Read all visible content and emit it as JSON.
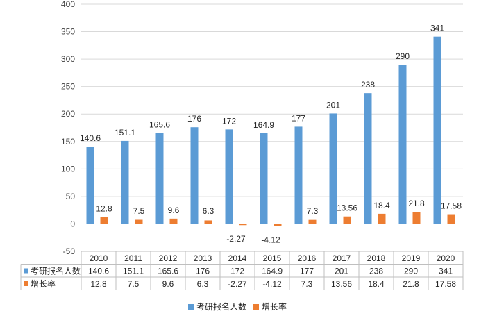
{
  "chart_data": {
    "type": "bar",
    "title": "",
    "xlabel": "",
    "ylabel": "",
    "ylim": [
      -50,
      400
    ],
    "yticks": [
      400,
      350,
      300,
      250,
      200,
      150,
      100,
      50,
      0,
      -50
    ],
    "categories": [
      "2010",
      "2011",
      "2012",
      "2013",
      "2014",
      "2015",
      "2016",
      "2017",
      "2018",
      "2019",
      "2020"
    ],
    "series": [
      {
        "name": "考研报名人数",
        "color": "#5b9bd5",
        "values": [
          140.6,
          151.1,
          165.6,
          176,
          172,
          164.9,
          177,
          201,
          238,
          290,
          341
        ],
        "labels": [
          "140.6",
          "151.1",
          "165.6",
          "176",
          "172",
          "164.9",
          "177",
          "201",
          "238",
          "290",
          "341"
        ]
      },
      {
        "name": "增长率",
        "color": "#ed7d31",
        "values": [
          12.8,
          7.5,
          9.6,
          6.3,
          -2.27,
          -4.12,
          7.3,
          13.56,
          18.4,
          21.8,
          17.58
        ],
        "labels": [
          "12.8",
          "7.5",
          "9.6",
          "6.3",
          "-2.27",
          "-4.12",
          "7.3",
          "13.56",
          "18.4",
          "21.8",
          "17.58"
        ]
      }
    ],
    "legend": "bottom",
    "data_table": true
  }
}
